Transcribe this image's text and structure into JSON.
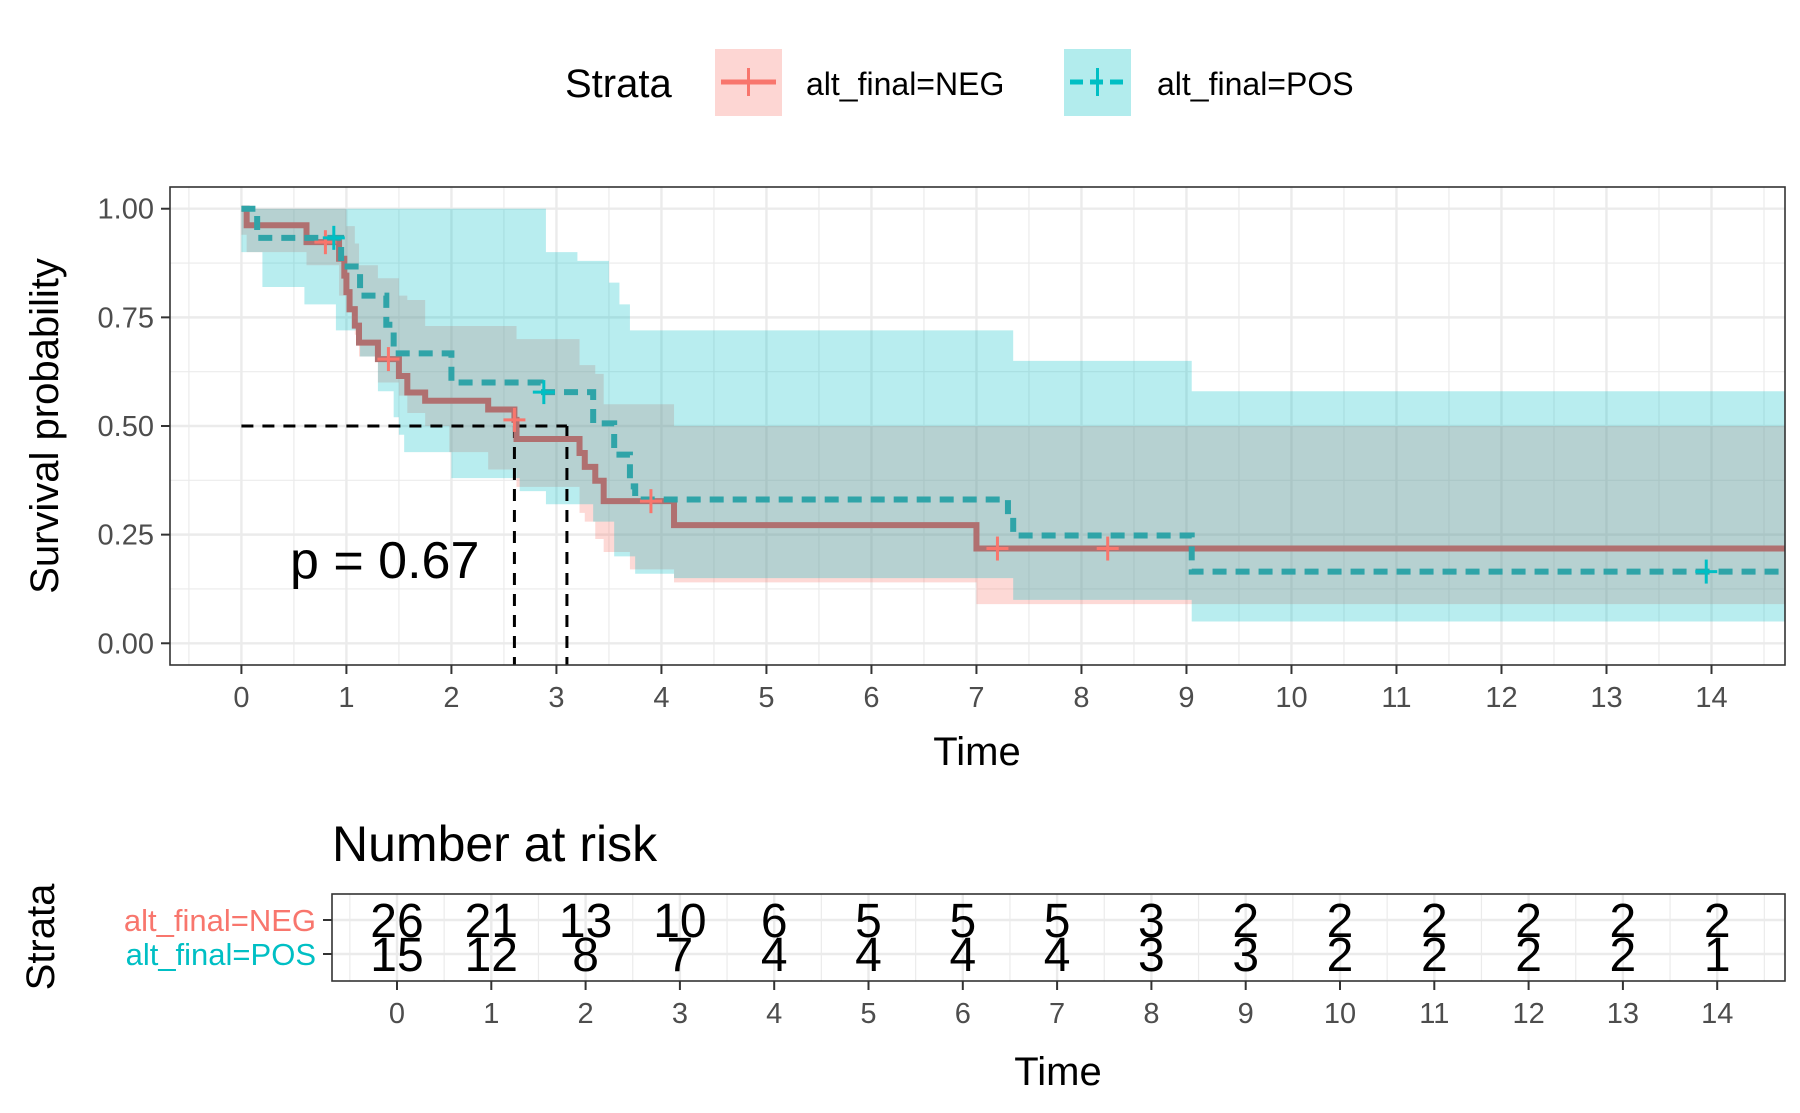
{
  "legend": {
    "title": "Strata",
    "items": [
      {
        "label": "alt_final=NEG",
        "color": "#F8766D",
        "dashed": false
      },
      {
        "label": "alt_final=POS",
        "color": "#00BFC4",
        "dashed": true
      }
    ]
  },
  "pvalue": "p = 0.67",
  "chart_data": [
    {
      "type": "line",
      "title": "",
      "xlabel": "Time",
      "ylabel": "Survival probability",
      "xlim": [
        -0.68,
        14.7
      ],
      "ylim": [
        -0.05,
        1.05
      ],
      "x_ticks": [
        "0",
        "1",
        "2",
        "3",
        "4",
        "5",
        "6",
        "7",
        "8",
        "9",
        "10",
        "11",
        "12",
        "13",
        "14"
      ],
      "y_ticks": [
        "0.00",
        "0.25",
        "0.50",
        "0.75",
        "1.00"
      ],
      "grid": true,
      "legend_position": "top",
      "median_lines": [
        2.6,
        3.1
      ],
      "series": [
        {
          "name": "alt_final=NEG",
          "color": "#F8766D",
          "dashed": false,
          "steps": [
            [
              0,
              1.0
            ],
            [
              0.05,
              0.962
            ],
            [
              0.62,
              0.923
            ],
            [
              0.93,
              0.885
            ],
            [
              0.98,
              0.846
            ],
            [
              1.0,
              0.808
            ],
            [
              1.03,
              0.769
            ],
            [
              1.08,
              0.731
            ],
            [
              1.12,
              0.692
            ],
            [
              1.3,
              0.654
            ],
            [
              1.5,
              0.615
            ],
            [
              1.58,
              0.577
            ],
            [
              1.75,
              0.558
            ],
            [
              2.35,
              0.538
            ],
            [
              2.6,
              0.514
            ],
            [
              2.62,
              0.47
            ],
            [
              3.22,
              0.438
            ],
            [
              3.27,
              0.406
            ],
            [
              3.37,
              0.374
            ],
            [
              3.45,
              0.327
            ],
            [
              4.12,
              0.272
            ],
            [
              7.0,
              0.218
            ],
            [
              14.7,
              0.218
            ]
          ],
          "censor_times": [
            0.8,
            1.4,
            2.6,
            3.9,
            7.2,
            8.25
          ],
          "ci_upper": [
            [
              0,
              1.0
            ],
            [
              0.05,
              1.0
            ],
            [
              0.62,
              1.0
            ],
            [
              1.0,
              0.96
            ],
            [
              1.08,
              0.92
            ],
            [
              1.12,
              0.87
            ],
            [
              1.3,
              0.84
            ],
            [
              1.5,
              0.8
            ],
            [
              1.58,
              0.79
            ],
            [
              1.75,
              0.73
            ],
            [
              2.35,
              0.73
            ],
            [
              2.62,
              0.7
            ],
            [
              3.22,
              0.64
            ],
            [
              3.37,
              0.62
            ],
            [
              3.45,
              0.55
            ],
            [
              4.12,
              0.5
            ],
            [
              7.0,
              0.5
            ],
            [
              14.7,
              0.5
            ]
          ],
          "ci_lower": [
            [
              0,
              0.94
            ],
            [
              0.05,
              0.9
            ],
            [
              0.62,
              0.87
            ],
            [
              0.93,
              0.8
            ],
            [
              1.0,
              0.76
            ],
            [
              1.08,
              0.71
            ],
            [
              1.12,
              0.66
            ],
            [
              1.3,
              0.6
            ],
            [
              1.5,
              0.57
            ],
            [
              1.58,
              0.53
            ],
            [
              1.75,
              0.5
            ],
            [
              1.98,
              0.44
            ],
            [
              2.35,
              0.4
            ],
            [
              2.62,
              0.36
            ],
            [
              3.22,
              0.3
            ],
            [
              3.27,
              0.28
            ],
            [
              3.37,
              0.24
            ],
            [
              3.45,
              0.21
            ],
            [
              3.7,
              0.17
            ],
            [
              4.12,
              0.14
            ],
            [
              7.0,
              0.09
            ],
            [
              7.35,
              0.09
            ],
            [
              14.7,
              0.09
            ]
          ]
        },
        {
          "name": "alt_final=POS",
          "color": "#00BFC4",
          "dashed": true,
          "steps": [
            [
              0,
              1.0
            ],
            [
              0.15,
              0.933
            ],
            [
              0.9,
              0.933
            ],
            [
              0.95,
              0.867
            ],
            [
              1.13,
              0.8
            ],
            [
              1.38,
              0.733
            ],
            [
              1.45,
              0.667
            ],
            [
              2.0,
              0.6
            ],
            [
              2.85,
              0.578
            ],
            [
              3.25,
              0.578
            ],
            [
              3.35,
              0.506
            ],
            [
              3.55,
              0.434
            ],
            [
              3.7,
              0.361
            ],
            [
              3.75,
              0.331
            ],
            [
              7.3,
              0.289
            ],
            [
              7.35,
              0.248
            ],
            [
              9.05,
              0.165
            ],
            [
              14.7,
              0.165
            ]
          ],
          "censor_times": [
            0.88,
            2.88,
            13.95
          ],
          "ci_upper": [
            [
              0,
              1.0
            ],
            [
              1.13,
              1.0
            ],
            [
              1.5,
              1.0
            ],
            [
              2.9,
              0.9
            ],
            [
              3.0,
              0.9
            ],
            [
              3.2,
              0.88
            ],
            [
              3.5,
              0.83
            ],
            [
              3.6,
              0.78
            ],
            [
              3.7,
              0.72
            ],
            [
              7.35,
              0.65
            ],
            [
              9.05,
              0.58
            ],
            [
              14.7,
              0.58
            ]
          ],
          "ci_lower": [
            [
              0,
              0.9
            ],
            [
              0.2,
              0.82
            ],
            [
              0.6,
              0.78
            ],
            [
              0.9,
              0.72
            ],
            [
              1.13,
              0.66
            ],
            [
              1.3,
              0.58
            ],
            [
              1.45,
              0.52
            ],
            [
              1.5,
              0.48
            ],
            [
              1.55,
              0.44
            ],
            [
              2.0,
              0.38
            ],
            [
              2.65,
              0.35
            ],
            [
              2.9,
              0.32
            ],
            [
              3.35,
              0.28
            ],
            [
              3.55,
              0.2
            ],
            [
              3.75,
              0.16
            ],
            [
              4.12,
              0.15
            ],
            [
              7.35,
              0.1
            ],
            [
              9.05,
              0.05
            ],
            [
              14.7,
              0.05
            ]
          ]
        }
      ]
    },
    {
      "type": "table",
      "title": "Number at risk",
      "xlabel": "Time",
      "ylabel": "Strata",
      "x_ticks": [
        "0",
        "1",
        "2",
        "3",
        "4",
        "5",
        "6",
        "7",
        "8",
        "9",
        "10",
        "11",
        "12",
        "13",
        "14"
      ],
      "rows": [
        {
          "name": "alt_final=NEG",
          "color": "#F8766D",
          "values": [
            26,
            21,
            13,
            10,
            6,
            5,
            5,
            5,
            3,
            2,
            2,
            2,
            2,
            2,
            2
          ]
        },
        {
          "name": "alt_final=POS",
          "color": "#00BFC4",
          "values": [
            15,
            12,
            8,
            7,
            4,
            4,
            4,
            4,
            3,
            3,
            2,
            2,
            2,
            2,
            1
          ]
        }
      ]
    }
  ]
}
